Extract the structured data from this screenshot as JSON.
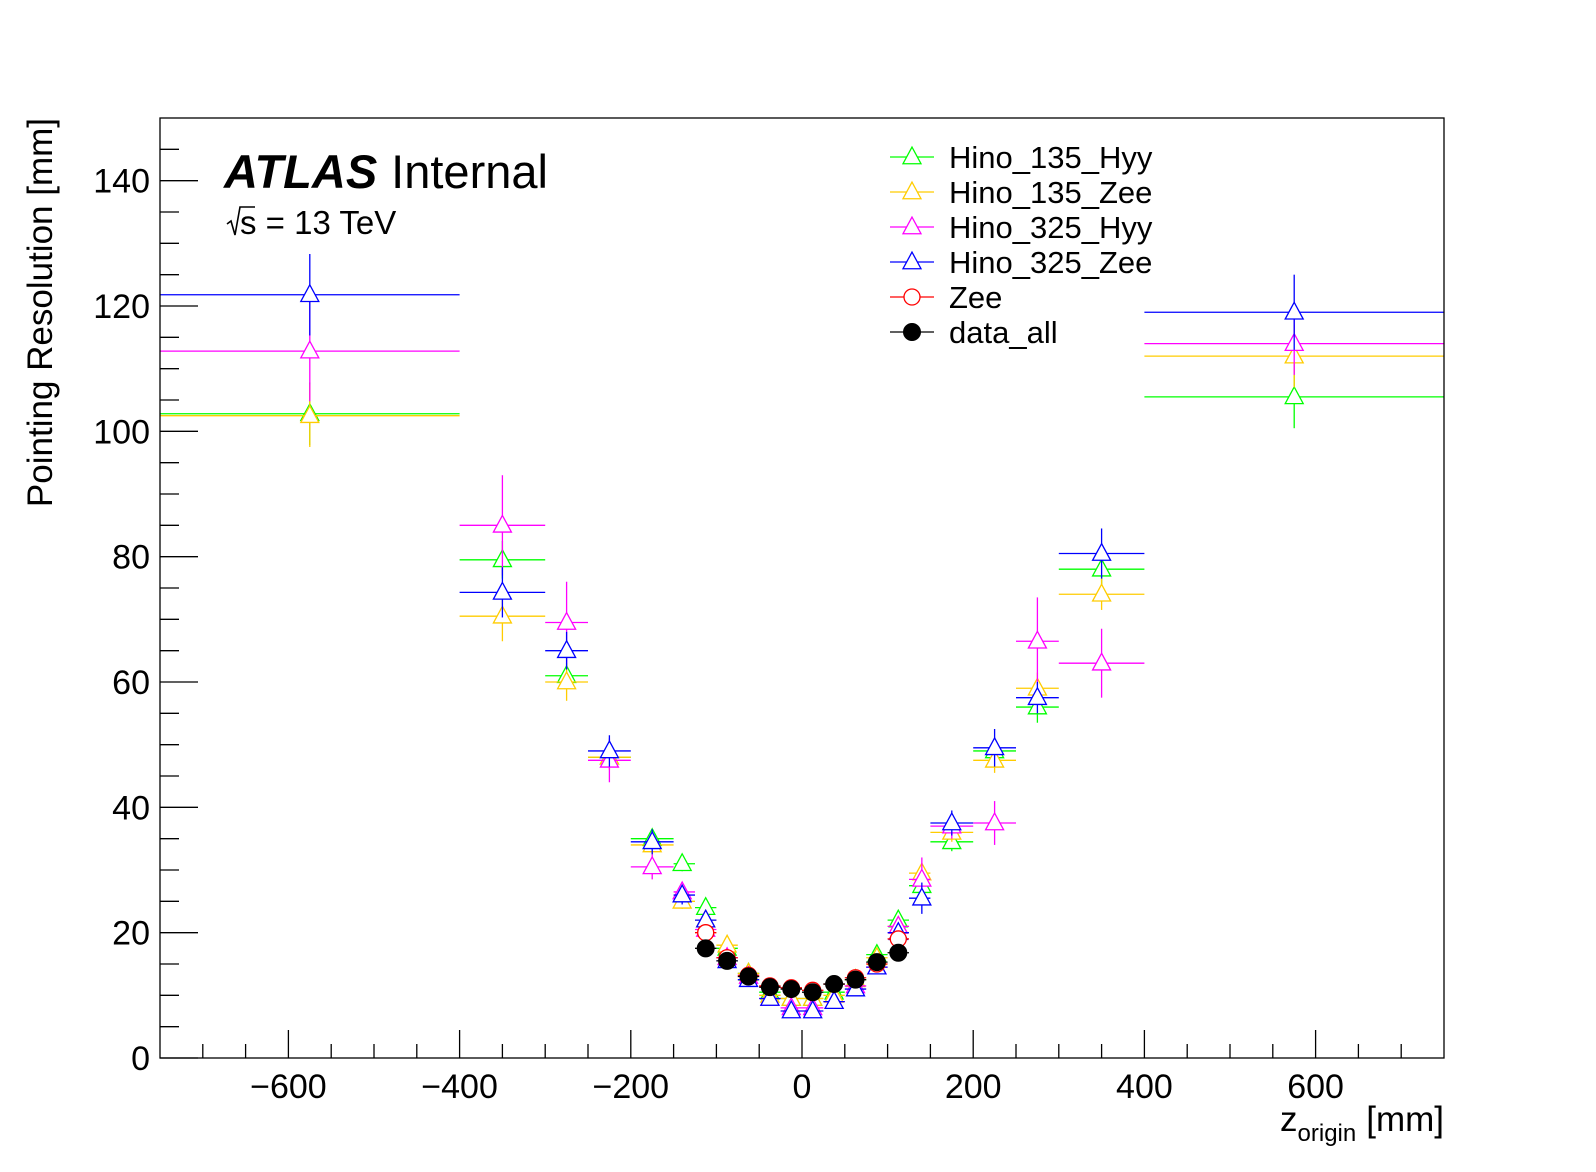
{
  "chart_data": {
    "type": "scatter",
    "title": "",
    "xlabel": "z",
    "xlabel_sub": "origin",
    "xlabel_unit": "[mm]",
    "ylabel": "Pointing Resolution [mm]",
    "xlim": [
      -750,
      750
    ],
    "ylim": [
      0,
      150
    ],
    "x_ticks": [
      -600,
      -400,
      -200,
      0,
      200,
      400,
      600
    ],
    "x_tick_labels": [
      "−600",
      "−400",
      "−200",
      "0",
      "200",
      "400",
      "600"
    ],
    "y_ticks": [
      0,
      20,
      40,
      60,
      80,
      100,
      120,
      140
    ],
    "y_tick_labels": [
      "0",
      "20",
      "40",
      "60",
      "80",
      "100",
      "120",
      "140"
    ],
    "grid": false,
    "legend_position": "top-right",
    "annotation": {
      "experiment": "ATLAS",
      "status": "Internal",
      "energy_prefix": "s",
      "energy_suffix": " = 13 TeV"
    },
    "series": [
      {
        "name": "Hino_135_Hyy",
        "color": "#00ff00",
        "marker": "open-triangle",
        "points": [
          {
            "x": -575,
            "y": 102.8,
            "xlo": -750,
            "xhi": -400,
            "yerr": 5
          },
          {
            "x": -350,
            "y": 79.5,
            "xlo": -400,
            "xhi": -300,
            "yerr": 3
          },
          {
            "x": -275,
            "y": 61,
            "xlo": -300,
            "xhi": -250,
            "yerr": 2
          },
          {
            "x": -225,
            "y": 48,
            "xlo": -250,
            "xhi": -200,
            "yerr": 1.5
          },
          {
            "x": -175,
            "y": 35,
            "xlo": -200,
            "xhi": -150,
            "yerr": 1.5
          },
          {
            "x": -140,
            "y": 31,
            "xlo": -150,
            "xhi": -125,
            "yerr": 1.2
          },
          {
            "x": -112.5,
            "y": 24,
            "xlo": -125,
            "xhi": -100,
            "yerr": 1
          },
          {
            "x": -87.5,
            "y": 17.5,
            "xlo": -100,
            "xhi": -75,
            "yerr": 0.8
          },
          {
            "x": -62.5,
            "y": 13.5,
            "xlo": -75,
            "xhi": -50,
            "yerr": 0.6
          },
          {
            "x": -37.5,
            "y": 10.5,
            "xlo": -50,
            "xhi": -25,
            "yerr": 0.5
          },
          {
            "x": -12.5,
            "y": 9.5,
            "xlo": -25,
            "xhi": 0,
            "yerr": 0.5
          },
          {
            "x": 12.5,
            "y": 9.5,
            "xlo": 0,
            "xhi": 25,
            "yerr": 0.5
          },
          {
            "x": 37.5,
            "y": 10.5,
            "xlo": 25,
            "xhi": 50,
            "yerr": 0.5
          },
          {
            "x": 62.5,
            "y": 12.5,
            "xlo": 50,
            "xhi": 75,
            "yerr": 0.6
          },
          {
            "x": 87.5,
            "y": 16.5,
            "xlo": 75,
            "xhi": 100,
            "yerr": 0.8
          },
          {
            "x": 112.5,
            "y": 22,
            "xlo": 100,
            "xhi": 125,
            "yerr": 1
          },
          {
            "x": 140,
            "y": 27.5,
            "xlo": 125,
            "xhi": 150,
            "yerr": 1.2
          },
          {
            "x": 175,
            "y": 34.5,
            "xlo": 150,
            "xhi": 200,
            "yerr": 1.5
          },
          {
            "x": 225,
            "y": 49,
            "xlo": 200,
            "xhi": 250,
            "yerr": 2
          },
          {
            "x": 275,
            "y": 56,
            "xlo": 250,
            "xhi": 300,
            "yerr": 2.5
          },
          {
            "x": 350,
            "y": 78,
            "xlo": 300,
            "xhi": 400,
            "yerr": 3
          },
          {
            "x": 575,
            "y": 105.5,
            "xlo": 400,
            "xhi": 750,
            "yerr": 5
          }
        ]
      },
      {
        "name": "Hino_135_Zee",
        "color": "#ffcc00",
        "marker": "open-triangle",
        "points": [
          {
            "x": -575,
            "y": 102.5,
            "xlo": -750,
            "xhi": -400,
            "yerr": 5
          },
          {
            "x": -350,
            "y": 70.5,
            "xlo": -400,
            "xhi": -300,
            "yerr": 4
          },
          {
            "x": -275,
            "y": 60,
            "xlo": -300,
            "xhi": -250,
            "yerr": 3
          },
          {
            "x": -225,
            "y": 48,
            "xlo": -250,
            "xhi": -200,
            "yerr": 2
          },
          {
            "x": -175,
            "y": 34,
            "xlo": -200,
            "xhi": -150,
            "yerr": 1.5
          },
          {
            "x": -140,
            "y": 25,
            "xlo": -150,
            "xhi": -125,
            "yerr": 1.2
          },
          {
            "x": -112.5,
            "y": 22,
            "xlo": -125,
            "xhi": -100,
            "yerr": 1
          },
          {
            "x": -87.5,
            "y": 18,
            "xlo": -100,
            "xhi": -75,
            "yerr": 0.8
          },
          {
            "x": -62.5,
            "y": 13.5,
            "xlo": -75,
            "xhi": -50,
            "yerr": 0.6
          },
          {
            "x": -37.5,
            "y": 10,
            "xlo": -50,
            "xhi": -25,
            "yerr": 0.5
          },
          {
            "x": -12.5,
            "y": 9.5,
            "xlo": -25,
            "xhi": 0,
            "yerr": 0.5
          },
          {
            "x": 12.5,
            "y": 9.5,
            "xlo": 0,
            "xhi": 25,
            "yerr": 0.5
          },
          {
            "x": 37.5,
            "y": 10,
            "xlo": 25,
            "xhi": 50,
            "yerr": 0.5
          },
          {
            "x": 62.5,
            "y": 12.5,
            "xlo": 50,
            "xhi": 75,
            "yerr": 0.6
          },
          {
            "x": 87.5,
            "y": 16,
            "xlo": 75,
            "xhi": 100,
            "yerr": 0.8
          },
          {
            "x": 112.5,
            "y": 21,
            "xlo": 100,
            "xhi": 125,
            "yerr": 1
          },
          {
            "x": 140,
            "y": 29.5,
            "xlo": 125,
            "xhi": 150,
            "yerr": 1.2
          },
          {
            "x": 175,
            "y": 36,
            "xlo": 150,
            "xhi": 200,
            "yerr": 1.5
          },
          {
            "x": 225,
            "y": 47.5,
            "xlo": 200,
            "xhi": 250,
            "yerr": 2
          },
          {
            "x": 275,
            "y": 59,
            "xlo": 250,
            "xhi": 300,
            "yerr": 2.5
          },
          {
            "x": 350,
            "y": 74,
            "xlo": 300,
            "xhi": 400,
            "yerr": 2.5
          },
          {
            "x": 575,
            "y": 112,
            "xlo": 400,
            "xhi": 750,
            "yerr": 5
          }
        ]
      },
      {
        "name": "Hino_325_Hyy",
        "color": "#ff00ff",
        "marker": "open-triangle",
        "points": [
          {
            "x": -575,
            "y": 112.8,
            "xlo": -750,
            "xhi": -400,
            "yerr": 8
          },
          {
            "x": -350,
            "y": 85,
            "xlo": -400,
            "xhi": -300,
            "yerr": 8
          },
          {
            "x": -275,
            "y": 69.5,
            "xlo": -300,
            "xhi": -250,
            "yerr": 6.5
          },
          {
            "x": -225,
            "y": 47.5,
            "xlo": -250,
            "xhi": -200,
            "yerr": 3.5
          },
          {
            "x": -175,
            "y": 30.5,
            "xlo": -200,
            "xhi": -150,
            "yerr": 2
          },
          {
            "x": -140,
            "y": 26.5,
            "xlo": -150,
            "xhi": -125,
            "yerr": 1.5
          },
          {
            "x": -112.5,
            "y": 20.5,
            "xlo": -125,
            "xhi": -100,
            "yerr": 1
          },
          {
            "x": -87.5,
            "y": 16,
            "xlo": -100,
            "xhi": -75,
            "yerr": 0.8
          },
          {
            "x": -62.5,
            "y": 13,
            "xlo": -75,
            "xhi": -50,
            "yerr": 0.6
          },
          {
            "x": -37.5,
            "y": 9.5,
            "xlo": -50,
            "xhi": -25,
            "yerr": 0.5
          },
          {
            "x": -12.5,
            "y": 8,
            "xlo": -25,
            "xhi": 0,
            "yerr": 0.5
          },
          {
            "x": 12.5,
            "y": 8,
            "xlo": 0,
            "xhi": 25,
            "yerr": 0.5
          },
          {
            "x": 37.5,
            "y": 9,
            "xlo": 25,
            "xhi": 50,
            "yerr": 0.5
          },
          {
            "x": 62.5,
            "y": 11.5,
            "xlo": 50,
            "xhi": 75,
            "yerr": 0.6
          },
          {
            "x": 87.5,
            "y": 14.5,
            "xlo": 75,
            "xhi": 100,
            "yerr": 0.8
          },
          {
            "x": 112.5,
            "y": 21,
            "xlo": 100,
            "xhi": 125,
            "yerr": 1
          },
          {
            "x": 140,
            "y": 28.5,
            "xlo": 125,
            "xhi": 150,
            "yerr": 3.5
          },
          {
            "x": 175,
            "y": 37,
            "xlo": 150,
            "xhi": 200,
            "yerr": 2
          },
          {
            "x": 225,
            "y": 37.5,
            "xlo": 200,
            "xhi": 250,
            "yerr": 3.5
          },
          {
            "x": 275,
            "y": 66.5,
            "xlo": 250,
            "xhi": 300,
            "yerr": 7
          },
          {
            "x": 350,
            "y": 63,
            "xlo": 300,
            "xhi": 400,
            "yerr": 5.5
          },
          {
            "x": 575,
            "y": 114,
            "xlo": 400,
            "xhi": 750,
            "yerr": 5
          }
        ]
      },
      {
        "name": "Hino_325_Zee",
        "color": "#0000ff",
        "marker": "open-triangle",
        "points": [
          {
            "x": -575,
            "y": 121.8,
            "xlo": -750,
            "xhi": -400,
            "yerr": 6.5
          },
          {
            "x": -350,
            "y": 74.3,
            "xlo": -400,
            "xhi": -300,
            "yerr": 4
          },
          {
            "x": -275,
            "y": 65,
            "xlo": -300,
            "xhi": -250,
            "yerr": 3
          },
          {
            "x": -225,
            "y": 49,
            "xlo": -250,
            "xhi": -200,
            "yerr": 2.5
          },
          {
            "x": -175,
            "y": 34.5,
            "xlo": -200,
            "xhi": -150,
            "yerr": 2
          },
          {
            "x": -140,
            "y": 26,
            "xlo": -150,
            "xhi": -125,
            "yerr": 1.5
          },
          {
            "x": -112.5,
            "y": 22,
            "xlo": -125,
            "xhi": -100,
            "yerr": 1
          },
          {
            "x": -87.5,
            "y": 15.5,
            "xlo": -100,
            "xhi": -75,
            "yerr": 0.8
          },
          {
            "x": -62.5,
            "y": 12.5,
            "xlo": -75,
            "xhi": -50,
            "yerr": 0.6
          },
          {
            "x": -37.5,
            "y": 9.5,
            "xlo": -50,
            "xhi": -25,
            "yerr": 0.5
          },
          {
            "x": -12.5,
            "y": 7.5,
            "xlo": -25,
            "xhi": 0,
            "yerr": 0.5
          },
          {
            "x": 12.5,
            "y": 7.5,
            "xlo": 0,
            "xhi": 25,
            "yerr": 0.5
          },
          {
            "x": 37.5,
            "y": 9,
            "xlo": 25,
            "xhi": 50,
            "yerr": 0.5
          },
          {
            "x": 62.5,
            "y": 11,
            "xlo": 50,
            "xhi": 75,
            "yerr": 0.6
          },
          {
            "x": 87.5,
            "y": 14.5,
            "xlo": 75,
            "xhi": 100,
            "yerr": 0.8
          },
          {
            "x": 112.5,
            "y": 20,
            "xlo": 100,
            "xhi": 125,
            "yerr": 1
          },
          {
            "x": 140,
            "y": 25.5,
            "xlo": 125,
            "xhi": 150,
            "yerr": 2.5
          },
          {
            "x": 175,
            "y": 37.5,
            "xlo": 150,
            "xhi": 200,
            "yerr": 2
          },
          {
            "x": 225,
            "y": 49.5,
            "xlo": 200,
            "xhi": 250,
            "yerr": 3
          },
          {
            "x": 275,
            "y": 57.5,
            "xlo": 250,
            "xhi": 300,
            "yerr": 2.5
          },
          {
            "x": 350,
            "y": 80.5,
            "xlo": 300,
            "xhi": 400,
            "yerr": 4
          },
          {
            "x": 575,
            "y": 119,
            "xlo": 400,
            "xhi": 750,
            "yerr": 6
          }
        ]
      },
      {
        "name": "Zee",
        "color": "#ff0000",
        "marker": "open-circle",
        "points": [
          {
            "x": -112.5,
            "y": 20,
            "xlo": -125,
            "xhi": -100,
            "yerr": 0.8
          },
          {
            "x": -87.5,
            "y": 16,
            "xlo": -100,
            "xhi": -75,
            "yerr": 0.6
          },
          {
            "x": -62.5,
            "y": 13.2,
            "xlo": -75,
            "xhi": -50,
            "yerr": 0.5
          },
          {
            "x": -37.5,
            "y": 11.5,
            "xlo": -50,
            "xhi": -25,
            "yerr": 0.4
          },
          {
            "x": -12.5,
            "y": 11.2,
            "xlo": -25,
            "xhi": 0,
            "yerr": 0.4
          },
          {
            "x": 12.5,
            "y": 10.8,
            "xlo": 0,
            "xhi": 25,
            "yerr": 0.4
          },
          {
            "x": 37.5,
            "y": 11.8,
            "xlo": 25,
            "xhi": 50,
            "yerr": 0.4
          },
          {
            "x": 62.5,
            "y": 12.8,
            "xlo": 50,
            "xhi": 75,
            "yerr": 0.5
          },
          {
            "x": 87.5,
            "y": 15,
            "xlo": 75,
            "xhi": 100,
            "yerr": 0.6
          },
          {
            "x": 112.5,
            "y": 19,
            "xlo": 100,
            "xhi": 125,
            "yerr": 0.8
          }
        ]
      },
      {
        "name": "data_all",
        "color": "#000000",
        "marker": "filled-circle",
        "points": [
          {
            "x": -112.5,
            "y": 17.5,
            "xlo": -125,
            "xhi": -100,
            "yerr": 0.3
          },
          {
            "x": -87.5,
            "y": 15.5,
            "xlo": -100,
            "xhi": -75,
            "yerr": 0.3
          },
          {
            "x": -62.5,
            "y": 13,
            "xlo": -75,
            "xhi": -50,
            "yerr": 0.3
          },
          {
            "x": -37.5,
            "y": 11.3,
            "xlo": -50,
            "xhi": -25,
            "yerr": 0.3
          },
          {
            "x": -12.5,
            "y": 11,
            "xlo": -25,
            "xhi": 0,
            "yerr": 0.3
          },
          {
            "x": 12.5,
            "y": 10.5,
            "xlo": 0,
            "xhi": 25,
            "yerr": 0.3
          },
          {
            "x": 37.5,
            "y": 11.8,
            "xlo": 25,
            "xhi": 50,
            "yerr": 0.3
          },
          {
            "x": 62.5,
            "y": 12.5,
            "xlo": 50,
            "xhi": 75,
            "yerr": 0.3
          },
          {
            "x": 87.5,
            "y": 15.3,
            "xlo": 75,
            "xhi": 100,
            "yerr": 0.3
          },
          {
            "x": 112.5,
            "y": 16.8,
            "xlo": 100,
            "xhi": 125,
            "yerr": 0.3
          }
        ]
      }
    ]
  }
}
